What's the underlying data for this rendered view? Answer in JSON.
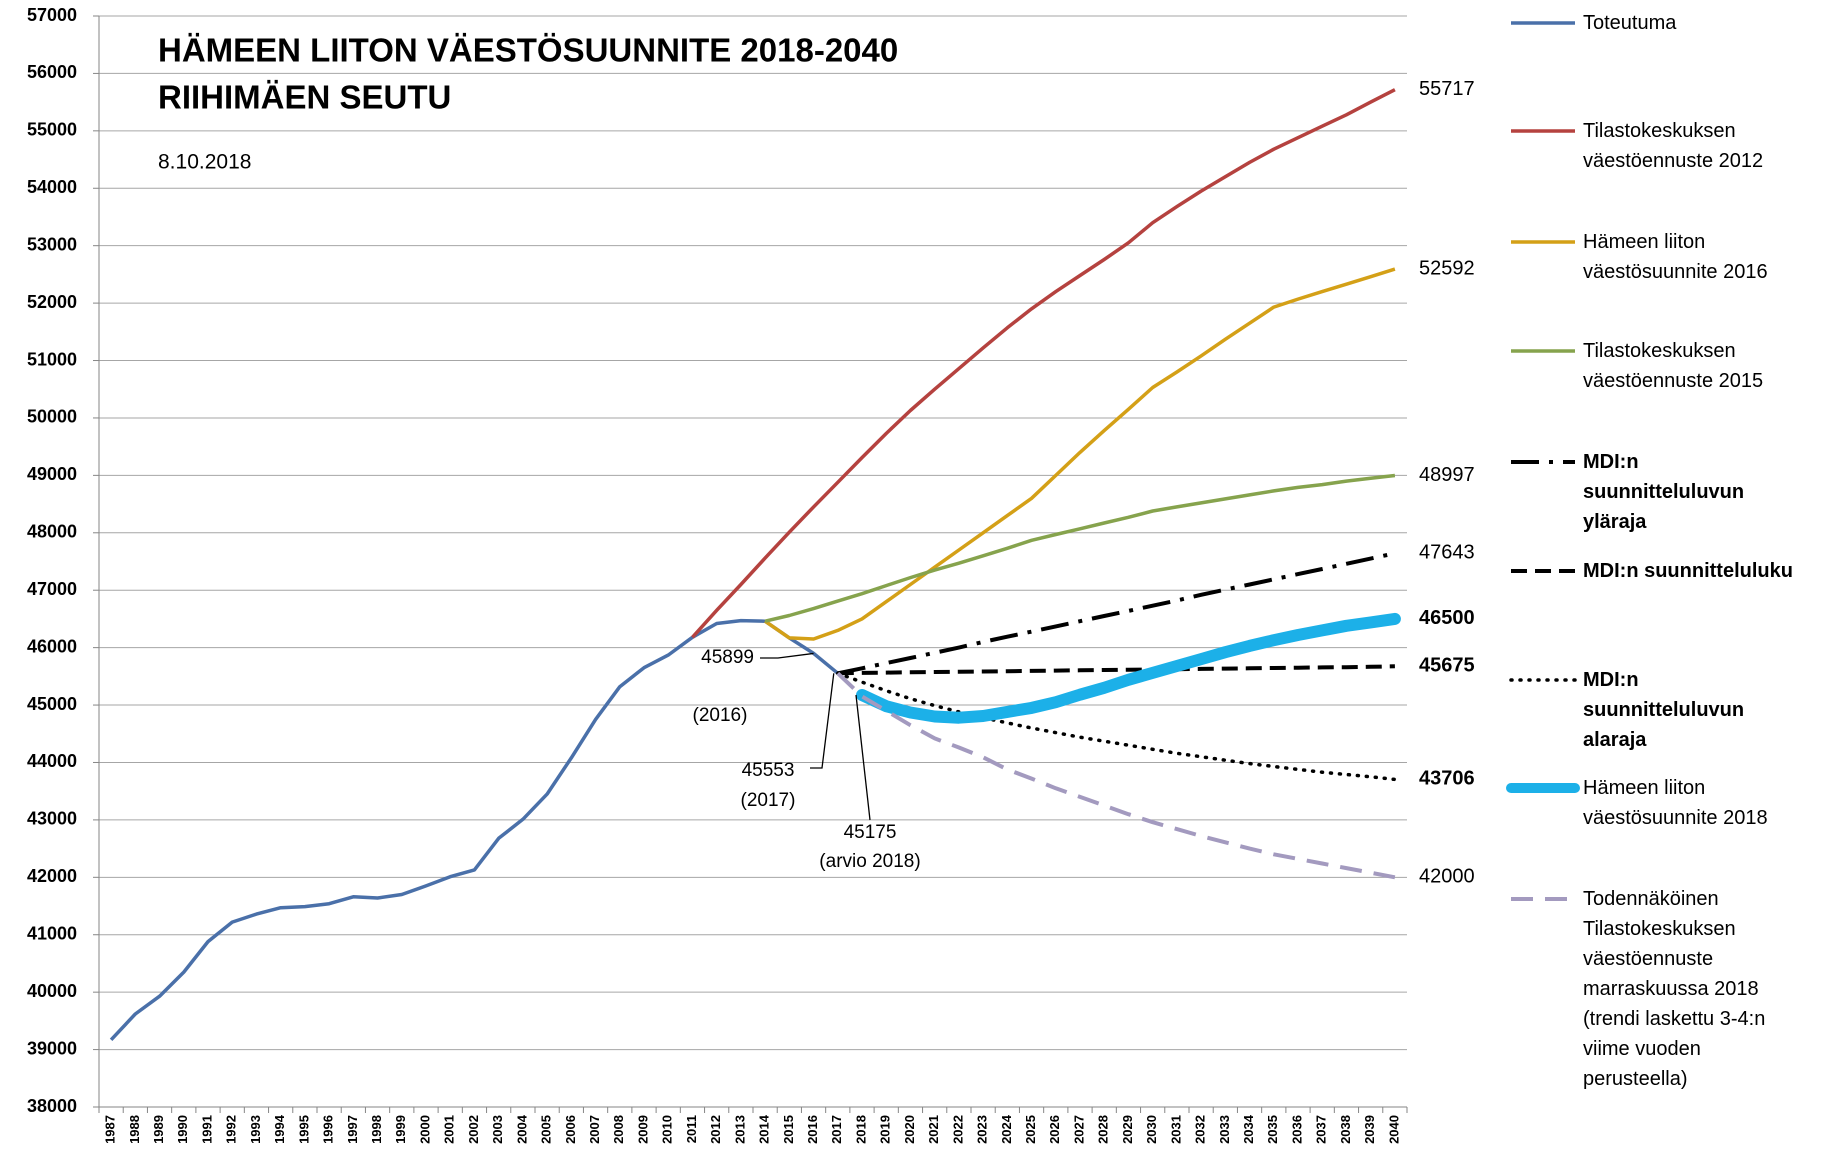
{
  "chart_data": {
    "type": "line",
    "title": "HÄMEEN LIITON VÄESTÖSUUNNITE 2018-2040",
    "subtitle": "RIIHIMÄEN SEUTU",
    "date": "8.10.2018",
    "categories": [
      "1987",
      "1988",
      "1989",
      "1990",
      "1991",
      "1992",
      "1993",
      "1994",
      "1995",
      "1996",
      "1997",
      "1998",
      "1999",
      "2000",
      "2001",
      "2002",
      "2003",
      "2004",
      "2005",
      "2006",
      "2007",
      "2008",
      "2009",
      "2010",
      "2011",
      "2012",
      "2013",
      "2014",
      "2015",
      "2016",
      "2017",
      "2018",
      "2019",
      "2020",
      "2021",
      "2022",
      "2023",
      "2024",
      "2025",
      "2026",
      "2027",
      "2028",
      "2029",
      "2030",
      "2031",
      "2032",
      "2033",
      "2034",
      "2035",
      "2036",
      "2037",
      "2038",
      "2039",
      "2040"
    ],
    "ylim": [
      38000,
      57000
    ],
    "yticks": [
      38000,
      39000,
      40000,
      41000,
      42000,
      43000,
      44000,
      45000,
      46000,
      47000,
      48000,
      49000,
      50000,
      51000,
      52000,
      53000,
      54000,
      55000,
      56000,
      57000
    ],
    "grid": true,
    "legend": "right",
    "series": [
      {
        "name": "Toteutuma",
        "color": "#4a70a9",
        "line_style": "solid",
        "end_label": false,
        "values": [
          39170,
          39620,
          39930,
          40350,
          40880,
          41220,
          41360,
          41470,
          41490,
          41540,
          41660,
          41640,
          41700,
          41850,
          42010,
          42130,
          42680,
          43010,
          43450,
          44080,
          44750,
          45320,
          45650,
          45870,
          46180,
          46420,
          46470,
          46460,
          46170,
          45899,
          45553,
          null,
          null,
          null,
          null,
          null,
          null,
          null,
          null,
          null,
          null,
          null,
          null,
          null,
          null,
          null,
          null,
          null,
          null,
          null,
          null,
          null,
          null,
          null
        ]
      },
      {
        "name": "Tilastokeskuksen väestöennuste 2012",
        "color": "#b5423f",
        "line_style": "solid",
        "end_label": true,
        "values": [
          null,
          null,
          null,
          null,
          null,
          null,
          null,
          null,
          null,
          null,
          null,
          null,
          null,
          null,
          null,
          null,
          null,
          null,
          null,
          null,
          null,
          null,
          null,
          null,
          46180,
          46650,
          47100,
          47560,
          48010,
          48450,
          48880,
          49310,
          49730,
          50130,
          50500,
          50860,
          51220,
          51570,
          51900,
          52200,
          52480,
          52760,
          53050,
          53400,
          53680,
          53950,
          54200,
          54450,
          54680,
          54880,
          55080,
          55280,
          55500,
          55717
        ]
      },
      {
        "name": "Hämeen liiton väestösuunnite 2016",
        "color": "#d4a017",
        "line_style": "solid",
        "end_label": true,
        "values": [
          null,
          null,
          null,
          null,
          null,
          null,
          null,
          null,
          null,
          null,
          null,
          null,
          null,
          null,
          null,
          null,
          null,
          null,
          null,
          null,
          null,
          null,
          null,
          null,
          null,
          null,
          null,
          46460,
          46170,
          46150,
          46300,
          46500,
          46800,
          47100,
          47400,
          47700,
          48000,
          48300,
          48600,
          49000,
          49400,
          49780,
          50150,
          50530,
          50800,
          51080,
          51370,
          51650,
          51930,
          52070,
          52200,
          52330,
          52460,
          52592
        ]
      },
      {
        "name": "Tilastokeskuksen väestöennuste 2015",
        "color": "#86a34d",
        "line_style": "solid",
        "end_label": true,
        "values": [
          null,
          null,
          null,
          null,
          null,
          null,
          null,
          null,
          null,
          null,
          null,
          null,
          null,
          null,
          null,
          null,
          null,
          null,
          null,
          null,
          null,
          null,
          null,
          null,
          null,
          null,
          null,
          46460,
          46560,
          46680,
          46810,
          46940,
          47080,
          47220,
          47350,
          47470,
          47600,
          47730,
          47870,
          47970,
          48070,
          48170,
          48270,
          48380,
          48450,
          48520,
          48590,
          48660,
          48730,
          48790,
          48840,
          48900,
          48950,
          48997
        ]
      },
      {
        "name": "MDI:n suunnitteluluvun yläraja",
        "color": "#000000",
        "line_style": "dashdot",
        "end_label": true,
        "values": [
          null,
          null,
          null,
          null,
          null,
          null,
          null,
          null,
          null,
          null,
          null,
          null,
          null,
          null,
          null,
          null,
          null,
          null,
          null,
          null,
          null,
          null,
          null,
          null,
          null,
          null,
          null,
          null,
          null,
          null,
          45553,
          45640,
          45730,
          45820,
          45910,
          46000,
          46100,
          46190,
          46280,
          46370,
          46460,
          46550,
          46640,
          46730,
          46820,
          46920,
          47010,
          47100,
          47190,
          47280,
          47370,
          47460,
          47550,
          47643
        ]
      },
      {
        "name": "MDI:n suunnitteluluku",
        "color": "#000000",
        "line_style": "dash",
        "end_label": true,
        "values": [
          null,
          null,
          null,
          null,
          null,
          null,
          null,
          null,
          null,
          null,
          null,
          null,
          null,
          null,
          null,
          null,
          null,
          null,
          null,
          null,
          null,
          null,
          null,
          null,
          null,
          null,
          null,
          null,
          null,
          null,
          45553,
          45560,
          45565,
          45570,
          45575,
          45580,
          45585,
          45590,
          45595,
          45600,
          45605,
          45610,
          45615,
          45620,
          45625,
          45630,
          45635,
          45640,
          45645,
          45650,
          45655,
          45660,
          45667,
          45675
        ]
      },
      {
        "name": "MDI:n suunnitteluluvun alaraja",
        "color": "#000000",
        "line_style": "dot",
        "end_label": true,
        "values": [
          null,
          null,
          null,
          null,
          null,
          null,
          null,
          null,
          null,
          null,
          null,
          null,
          null,
          null,
          null,
          null,
          null,
          null,
          null,
          null,
          null,
          null,
          null,
          null,
          null,
          null,
          null,
          null,
          null,
          null,
          45553,
          45400,
          45250,
          45110,
          44990,
          44880,
          44780,
          44690,
          44600,
          44520,
          44440,
          44370,
          44300,
          44230,
          44160,
          44100,
          44040,
          43980,
          43930,
          43880,
          43830,
          43790,
          43750,
          43706
        ]
      },
      {
        "name": "Hämeen liiton väestösuunnite 2018",
        "color": "#1cb0e8",
        "line_style": "thick",
        "end_label": true,
        "values": [
          null,
          null,
          null,
          null,
          null,
          null,
          null,
          null,
          null,
          null,
          null,
          null,
          null,
          null,
          null,
          null,
          null,
          null,
          null,
          null,
          null,
          null,
          null,
          null,
          null,
          null,
          null,
          null,
          null,
          null,
          null,
          45175,
          44980,
          44870,
          44800,
          44780,
          44810,
          44880,
          44950,
          45050,
          45180,
          45300,
          45440,
          45560,
          45680,
          45800,
          45920,
          46030,
          46130,
          46220,
          46300,
          46380,
          46440,
          46500
        ]
      },
      {
        "name": "Todennäköinen Tilastokeskuksen väestöennuste marraskuussa 2018 (trendi laskettu 3-4:n viime vuoden perusteella)",
        "color": "#a39abf",
        "line_style": "longdash",
        "end_label": true,
        "values": [
          null,
          null,
          null,
          null,
          null,
          null,
          null,
          null,
          null,
          null,
          null,
          null,
          null,
          null,
          null,
          null,
          null,
          null,
          null,
          null,
          null,
          null,
          null,
          null,
          null,
          null,
          null,
          null,
          null,
          null,
          45553,
          45150,
          44900,
          44650,
          44420,
          44260,
          44090,
          43880,
          43720,
          43550,
          43400,
          43250,
          43100,
          42960,
          42840,
          42720,
          42610,
          42500,
          42400,
          42320,
          42240,
          42160,
          42080,
          42000
        ]
      }
    ],
    "annotations": [
      {
        "text": "45899",
        "note": "(2016)"
      },
      {
        "text": "45553",
        "note": "(2017)"
      },
      {
        "text": "45175",
        "note": "(arvio 2018)"
      }
    ]
  }
}
